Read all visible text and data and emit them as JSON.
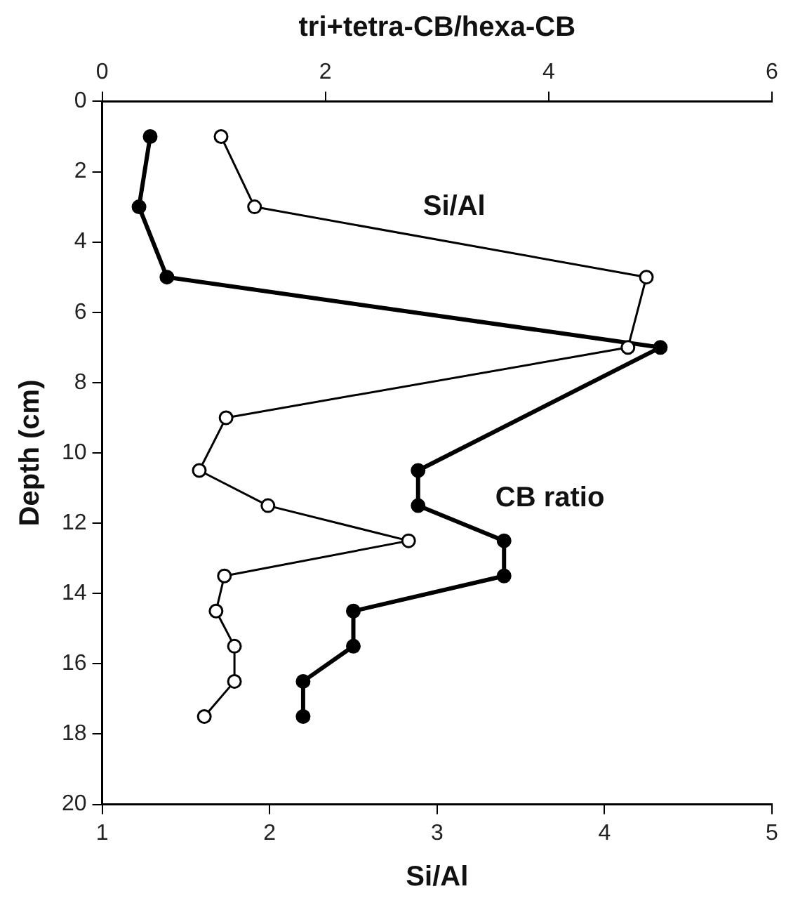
{
  "chart_data": {
    "type": "line",
    "xlabel": "Si/Al",
    "x2label": "tri+tetra-CB/hexa-CB",
    "ylabel": "Depth (cm)",
    "xlim": [
      1,
      5
    ],
    "xticks": [
      1,
      2,
      3,
      4,
      5
    ],
    "x2lim": [
      0,
      6
    ],
    "x2ticks": [
      0,
      2,
      4,
      6
    ],
    "ylim": [
      20,
      0
    ],
    "yticks": [
      0,
      2,
      4,
      6,
      8,
      10,
      12,
      14,
      16,
      18,
      20
    ],
    "grid": false,
    "legend": false,
    "marker": "circle",
    "line_style": "solid",
    "series": [
      {
        "name": "Si/Al",
        "color": "#000000",
        "x": [
          1.71,
          1.91,
          4.25,
          4.14,
          1.74,
          1.58,
          1.99,
          2.83,
          1.73,
          1.68,
          1.79,
          1.79,
          1.61
        ],
        "values": [
          1,
          3,
          5,
          7,
          9,
          10.5,
          11.5,
          12.5,
          13.5,
          14.5,
          15.5,
          16.5,
          17.5
        ]
      },
      {
        "name": "CB ratio",
        "color": "#000000",
        "axis": "x2",
        "x": [
          0.43,
          0.33,
          0.58,
          5.0,
          2.83,
          2.83,
          3.6,
          3.6,
          2.25,
          2.25,
          1.8,
          1.8
        ],
        "values": [
          1,
          3,
          5,
          7,
          10.5,
          11.5,
          12.5,
          13.5,
          14.5,
          15.5,
          16.5,
          17.5
        ]
      }
    ]
  }
}
